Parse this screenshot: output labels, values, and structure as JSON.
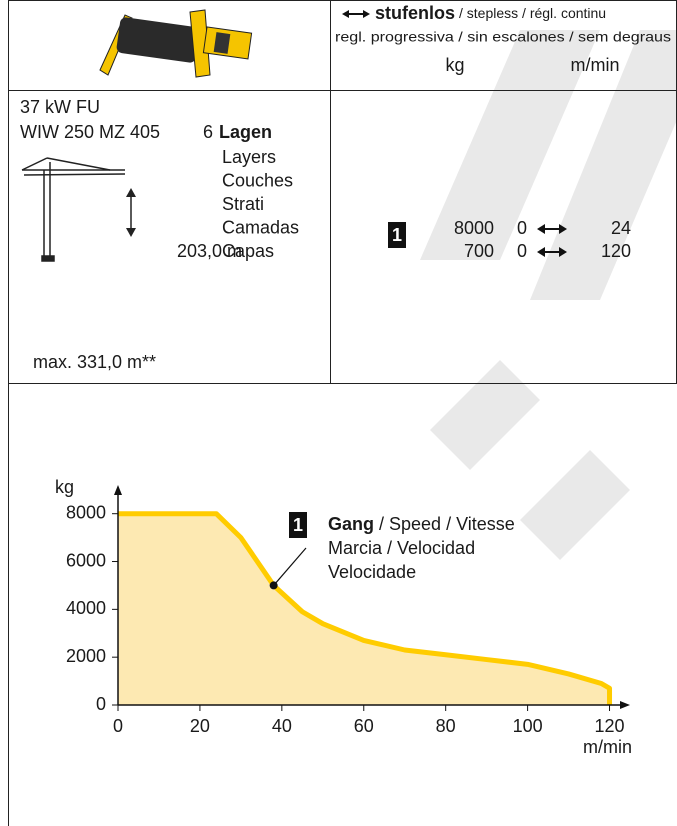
{
  "header": {
    "stufenlos": "stufenlos",
    "languages_1": "/ stepless / régl. continu",
    "languages_2": "regl. progressiva / sin escalones / sem degraus",
    "unit_load": "kg",
    "unit_speed": "m/min"
  },
  "specs": {
    "power": "37 kW FU",
    "winch": "WIW 250 MZ 405",
    "layers_count": 6,
    "layers_label": "Lagen",
    "layers_translations": [
      "Layers",
      "Couches",
      "Strati",
      "Camadas",
      "Capas"
    ],
    "height": "203,0 m",
    "max_height": "max. 331,0 m**"
  },
  "speeds": {
    "gear": "1",
    "rows": [
      {
        "load": 8000,
        "min": 0,
        "max": 24
      },
      {
        "load": 700,
        "min": 0,
        "max": 120
      }
    ]
  },
  "chart_data": {
    "type": "line",
    "x": [
      0,
      24,
      30,
      38,
      45,
      50,
      60,
      70,
      80,
      90,
      100,
      110,
      118,
      120
    ],
    "series": [
      {
        "color": "#ffcc00",
        "fill": "#fde9b2",
        "values": [
          8000,
          8000,
          7000,
          5000,
          3900,
          3400,
          2700,
          2300,
          2100,
          1900,
          1700,
          1300,
          900,
          700
        ]
      }
    ],
    "xlim": [
      0,
      125
    ],
    "ylim": [
      0,
      9200
    ],
    "xticks": [
      0,
      20,
      40,
      60,
      80,
      100,
      120
    ],
    "yticks": [
      0,
      2000,
      4000,
      6000,
      8000
    ],
    "xlabel": "m/min",
    "ylabel": "kg",
    "annotation": {
      "marker": "1",
      "bold": "Gang",
      "lines": [
        "/ Speed / Vitesse",
        "Marcia / Velocidad",
        "Velocidade"
      ],
      "point_index": 3
    }
  }
}
